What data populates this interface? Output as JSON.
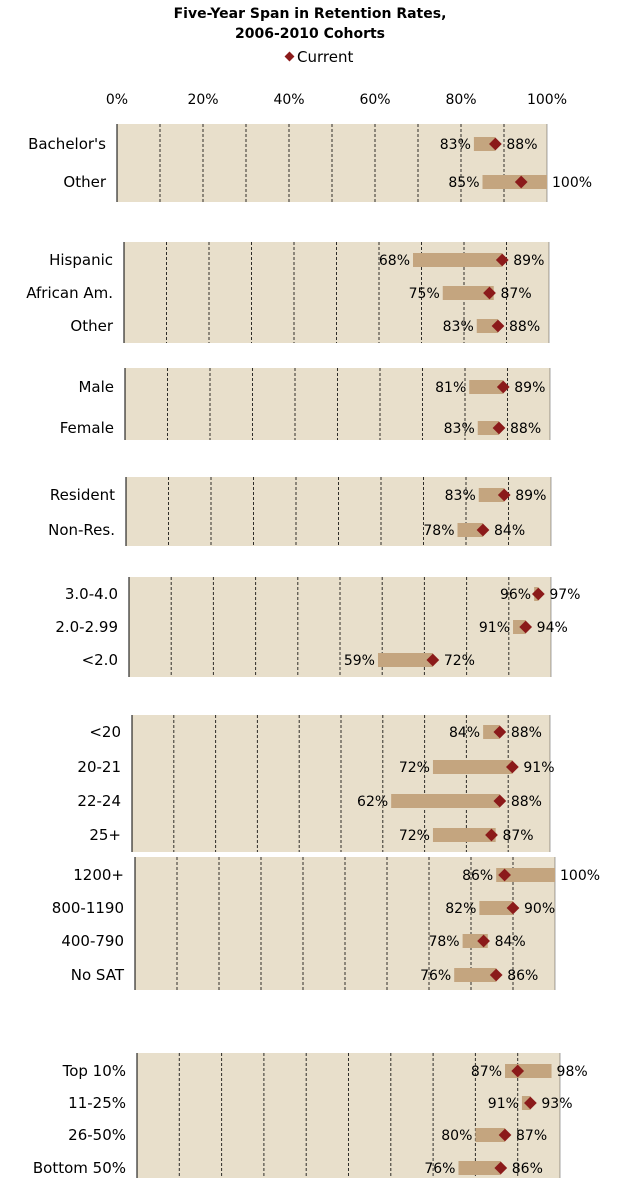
{
  "chart_data": {
    "type": "range-bar",
    "title_line1": "Five-Year Span in Retention Rates,",
    "title_line2": "2006-2010 Cohorts",
    "legend": {
      "marker_label": "Current",
      "marker_color": "#8B1A1A",
      "placement": "top"
    },
    "range_color": "#C4A57F",
    "panel_color": "#E8DFCB",
    "x_ticks": [
      "0%",
      "20%",
      "40%",
      "60%",
      "80%",
      "100%"
    ],
    "xlim": [
      0,
      100
    ],
    "groups": [
      {
        "rows": [
          {
            "label": "Bachelor's",
            "min": 83,
            "max": 88,
            "current": 88,
            "min_label": "83%",
            "max_label": "88%"
          },
          {
            "label": "Other",
            "min": 85,
            "max": 100,
            "current": 94,
            "min_label": "85%",
            "max_label": "100%"
          }
        ]
      },
      {
        "rows": [
          {
            "label": "Hispanic",
            "min": 68,
            "max": 89,
            "current": 89,
            "min_label": "68%",
            "max_label": "89%"
          },
          {
            "label": "African Am.",
            "min": 75,
            "max": 87,
            "current": 86,
            "min_label": "75%",
            "max_label": "87%"
          },
          {
            "label": "Other",
            "min": 83,
            "max": 88,
            "current": 88,
            "min_label": "83%",
            "max_label": "88%"
          }
        ]
      },
      {
        "rows": [
          {
            "label": "Male",
            "min": 81,
            "max": 89,
            "current": 89,
            "min_label": "81%",
            "max_label": "89%"
          },
          {
            "label": "Female",
            "min": 83,
            "max": 88,
            "current": 88,
            "min_label": "83%",
            "max_label": "88%"
          }
        ]
      },
      {
        "rows": [
          {
            "label": "Resident",
            "min": 83,
            "max": 89,
            "current": 89,
            "min_label": "83%",
            "max_label": "89%"
          },
          {
            "label": "Non-Res.",
            "min": 78,
            "max": 84,
            "current": 84,
            "min_label": "78%",
            "max_label": "84%"
          }
        ]
      },
      {
        "rows": [
          {
            "label": "3.0-4.0",
            "min": 96,
            "max": 97,
            "current": 97,
            "min_label": "96%",
            "max_label": "97%"
          },
          {
            "label": "2.0-2.99",
            "min": 91,
            "max": 94,
            "current": 94,
            "min_label": "91%",
            "max_label": "94%"
          },
          {
            "label": "<2.0",
            "min": 59,
            "max": 72,
            "current": 72,
            "min_label": "59%",
            "max_label": "72%"
          }
        ]
      },
      {
        "rows": [
          {
            "label": "<20",
            "min": 84,
            "max": 88,
            "current": 88,
            "min_label": "84%",
            "max_label": "88%"
          },
          {
            "label": "20-21",
            "min": 72,
            "max": 91,
            "current": 91,
            "min_label": "72%",
            "max_label": "91%"
          },
          {
            "label": "22-24",
            "min": 62,
            "max": 88,
            "current": 88,
            "min_label": "62%",
            "max_label": "88%"
          },
          {
            "label": "25+",
            "min": 72,
            "max": 87,
            "current": 86,
            "min_label": "72%",
            "max_label": "87%"
          }
        ]
      },
      {
        "rows": [
          {
            "label": "1200+",
            "min": 86,
            "max": 100,
            "current": 88,
            "min_label": "86%",
            "max_label": "100%"
          },
          {
            "label": "800-1190",
            "min": 82,
            "max": 90,
            "current": 90,
            "min_label": "82%",
            "max_label": "90%"
          },
          {
            "label": "400-790",
            "min": 78,
            "max": 84,
            "current": 83,
            "min_label": "78%",
            "max_label": "84%"
          },
          {
            "label": "No SAT",
            "min": 76,
            "max": 86,
            "current": 86,
            "min_label": "76%",
            "max_label": "86%"
          }
        ]
      },
      {
        "rows": [
          {
            "label": "Top 10%",
            "min": 87,
            "max": 98,
            "current": 90,
            "min_label": "87%",
            "max_label": "98%"
          },
          {
            "label": "11-25%",
            "min": 91,
            "max": 93,
            "current": 93,
            "min_label": "91%",
            "max_label": "93%"
          },
          {
            "label": "26-50%",
            "min": 80,
            "max": 87,
            "current": 87,
            "min_label": "80%",
            "max_label": "87%"
          },
          {
            "label": "Bottom 50%",
            "min": 76,
            "max": 86,
            "current": 86,
            "min_label": "76%",
            "max_label": "86%"
          }
        ]
      }
    ]
  }
}
